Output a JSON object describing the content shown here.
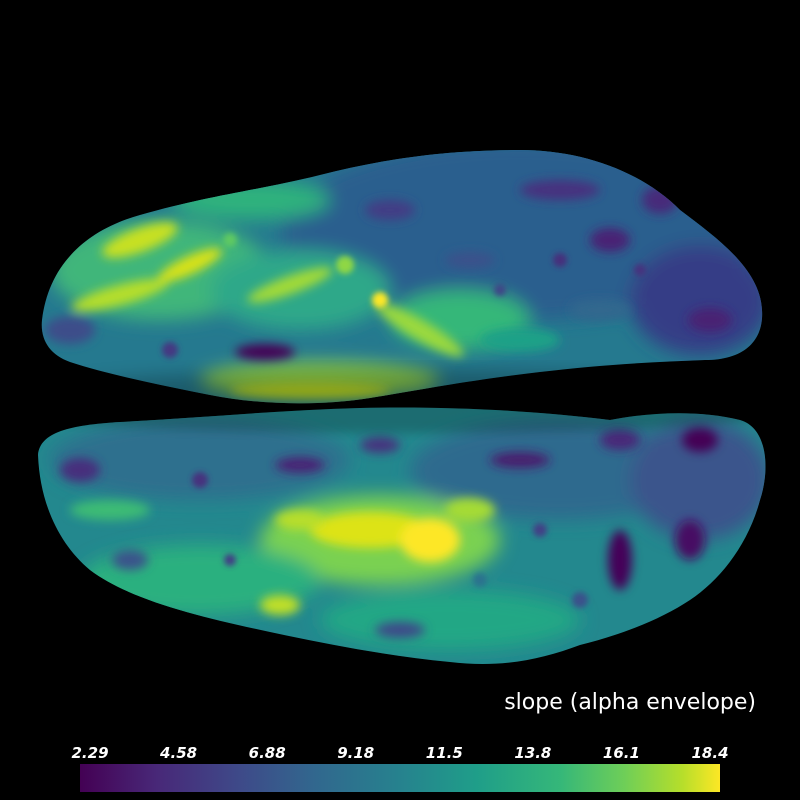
{
  "scene": {
    "background": "#000000",
    "object": "inflated cortical surface, two hemispheres, viridis-colored scalar map"
  },
  "colorbar": {
    "title": "slope (alpha envelope)",
    "colormap": "viridis",
    "ticks": [
      "2.29",
      "4.58",
      "6.88",
      "9.18",
      "11.5",
      "13.8",
      "16.1",
      "18.4"
    ],
    "min": 2.29,
    "max": 18.4
  }
}
